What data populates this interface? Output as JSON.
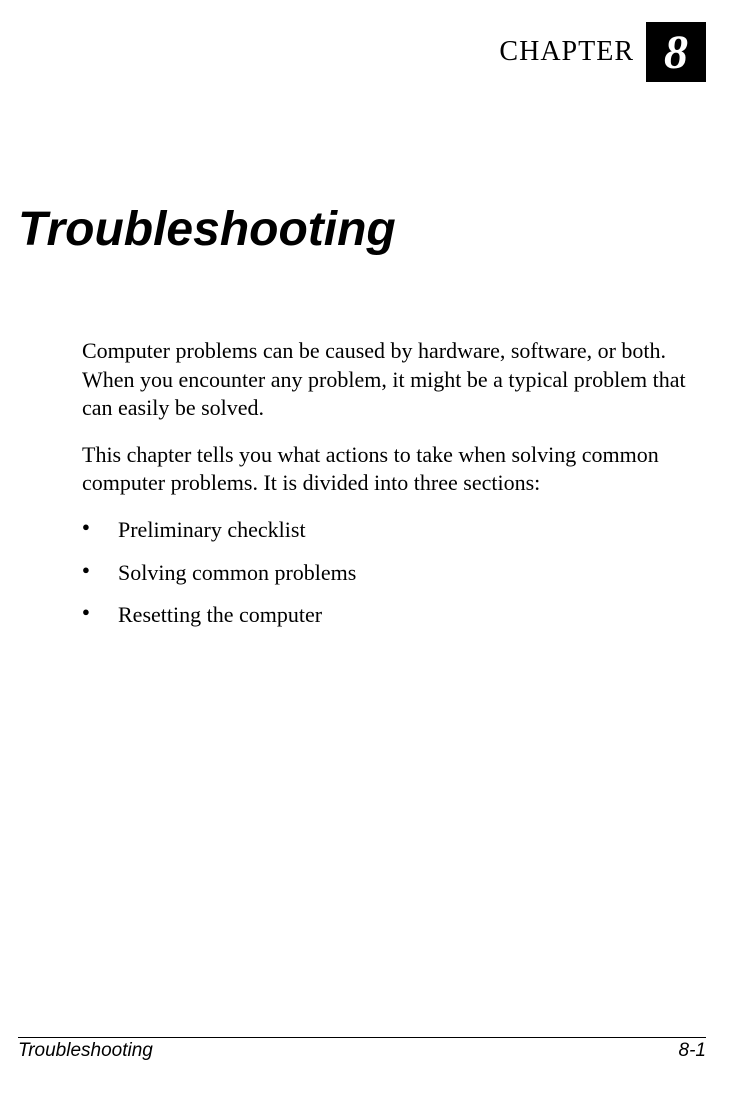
{
  "chapter": {
    "label": "CHAPTER",
    "number": "8",
    "title": "Troubleshooting"
  },
  "body": {
    "para1": "Computer problems can be caused by hardware, software, or both. When you encounter any problem, it might be a typical problem that can easily be solved.",
    "para2": "This chapter tells you what actions to take when solving common computer problems. It is divided into three sections:",
    "bullets": {
      "item0": "Preliminary checklist",
      "item1": "Solving common problems",
      "item2": "Resetting the computer"
    }
  },
  "footer": {
    "left": "Troubleshooting",
    "right": "8-1"
  },
  "styles": {
    "page_background": "#ffffff",
    "text_color": "#000000",
    "chapter_box_bg": "#000000",
    "chapter_box_text": "#ffffff",
    "footer_border": "#000000",
    "title_font": "Arial",
    "body_font": "Times New Roman",
    "title_fontsize": 48,
    "body_fontsize": 22,
    "chapter_label_fontsize": 28,
    "chapter_number_fontsize": 48,
    "footer_fontsize": 19
  }
}
